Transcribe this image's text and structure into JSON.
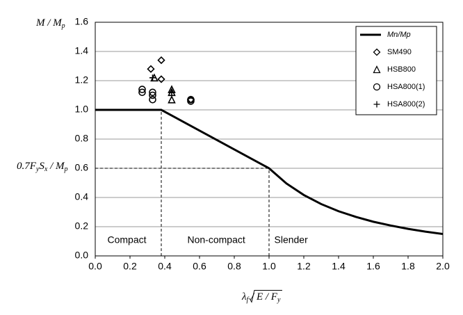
{
  "chart_data": {
    "type": "line",
    "y_label": [
      "M / M",
      "p"
    ],
    "x_label": [
      "λ",
      "f",
      " / ",
      "E / F",
      "y"
    ],
    "ref_label": [
      "0.7F",
      "y",
      "S",
      "x",
      " / M",
      "p"
    ],
    "regions": [
      {
        "text": "Compact",
        "x": 0.07
      },
      {
        "text": "Non-compact",
        "x": 0.53
      },
      {
        "text": "Slender",
        "x": 1.03
      }
    ],
    "dashed_lines": [
      {
        "x": 0.38,
        "y": 1.0
      },
      {
        "x": 1.0,
        "y": 0.6
      }
    ],
    "xlim": [
      0,
      2.0
    ],
    "ylim": [
      0,
      1.6
    ],
    "xticks": [
      {
        "value": 0,
        "label": "0.0"
      },
      {
        "value": 0.2,
        "label": "0.2"
      },
      {
        "value": 0.4,
        "label": "0.4"
      },
      {
        "value": 0.6,
        "label": "0.6"
      },
      {
        "value": 0.8,
        "label": "0.8"
      },
      {
        "value": 1.0,
        "label": "1.0"
      },
      {
        "value": 1.2,
        "label": "1.2"
      },
      {
        "value": 1.4,
        "label": "1.4"
      },
      {
        "value": 1.6,
        "label": "1.6"
      },
      {
        "value": 1.8,
        "label": "1.8"
      },
      {
        "value": 2.0,
        "label": "2.0"
      }
    ],
    "yticks": [
      {
        "value": 0,
        "label": "0.0"
      },
      {
        "value": 0.2,
        "label": "0.2"
      },
      {
        "value": 0.4,
        "label": "0.4"
      },
      {
        "value": 0.6,
        "label": "0.6"
      },
      {
        "value": 0.8,
        "label": "0.8"
      },
      {
        "value": 1.0,
        "label": "1.0"
      },
      {
        "value": 1.2,
        "label": "1.2"
      },
      {
        "value": 1.4,
        "label": "1.4"
      },
      {
        "value": 1.6,
        "label": "1.6"
      }
    ],
    "grid": true,
    "legend": "top-right",
    "series": [
      {
        "name": "Mn/Mp",
        "color": "#000000",
        "marker": "line",
        "x": [
          0,
          0.38,
          1.0,
          1.1,
          1.2,
          1.3,
          1.4,
          1.5,
          1.6,
          1.7,
          1.8,
          1.9,
          2.0
        ],
        "values": [
          1.0,
          1.0,
          0.6,
          0.496,
          0.417,
          0.355,
          0.306,
          0.267,
          0.234,
          0.208,
          0.185,
          0.166,
          0.15
        ]
      },
      {
        "name": "SM490",
        "color": "#000000",
        "marker": "diamond",
        "x": [
          0.32,
          0.38,
          0.38,
          0.55
        ],
        "values": [
          1.28,
          1.34,
          1.21,
          1.07
        ]
      },
      {
        "name": "HSB800",
        "color": "#000000",
        "marker": "triangle",
        "x": [
          0.34,
          0.44,
          0.44,
          0.44
        ],
        "values": [
          1.22,
          1.14,
          1.07,
          1.12
        ]
      },
      {
        "name": "HSA800(1)",
        "color": "#000000",
        "marker": "circle",
        "x": [
          0.27,
          0.27,
          0.33,
          0.33,
          0.33,
          0.55,
          0.55
        ],
        "values": [
          1.14,
          1.12,
          1.12,
          1.1,
          1.07,
          1.06,
          1.07
        ]
      },
      {
        "name": "HSA800(2)",
        "color": "#000000",
        "marker": "plus",
        "x": [
          0.33,
          0.44
        ],
        "values": [
          1.22,
          1.12
        ]
      }
    ]
  }
}
